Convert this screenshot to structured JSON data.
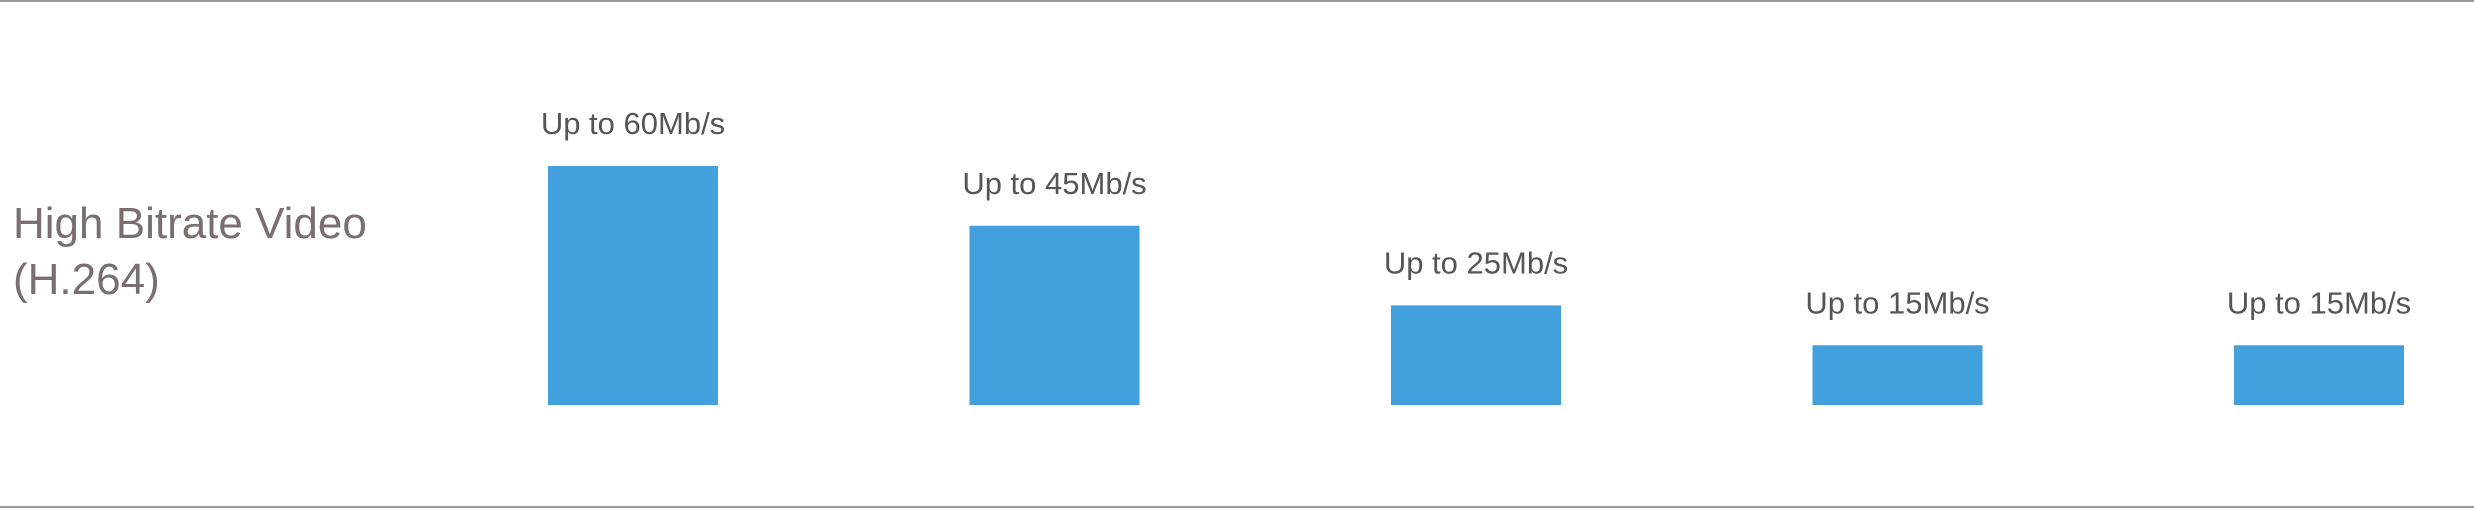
{
  "chart_data": {
    "type": "bar",
    "title": "High Bitrate Video (H.264)",
    "categories": [
      null,
      null,
      null,
      null,
      null
    ],
    "values": [
      60,
      45,
      25,
      15,
      15
    ],
    "value_labels": [
      "Up to 60Mb/s",
      "Up to 45Mb/s",
      "Up to 25Mb/s",
      "Up to 15Mb/s",
      "Up to 15Mb/s"
    ],
    "color": "#42a0dd",
    "ylim": [
      0,
      60
    ]
  }
}
